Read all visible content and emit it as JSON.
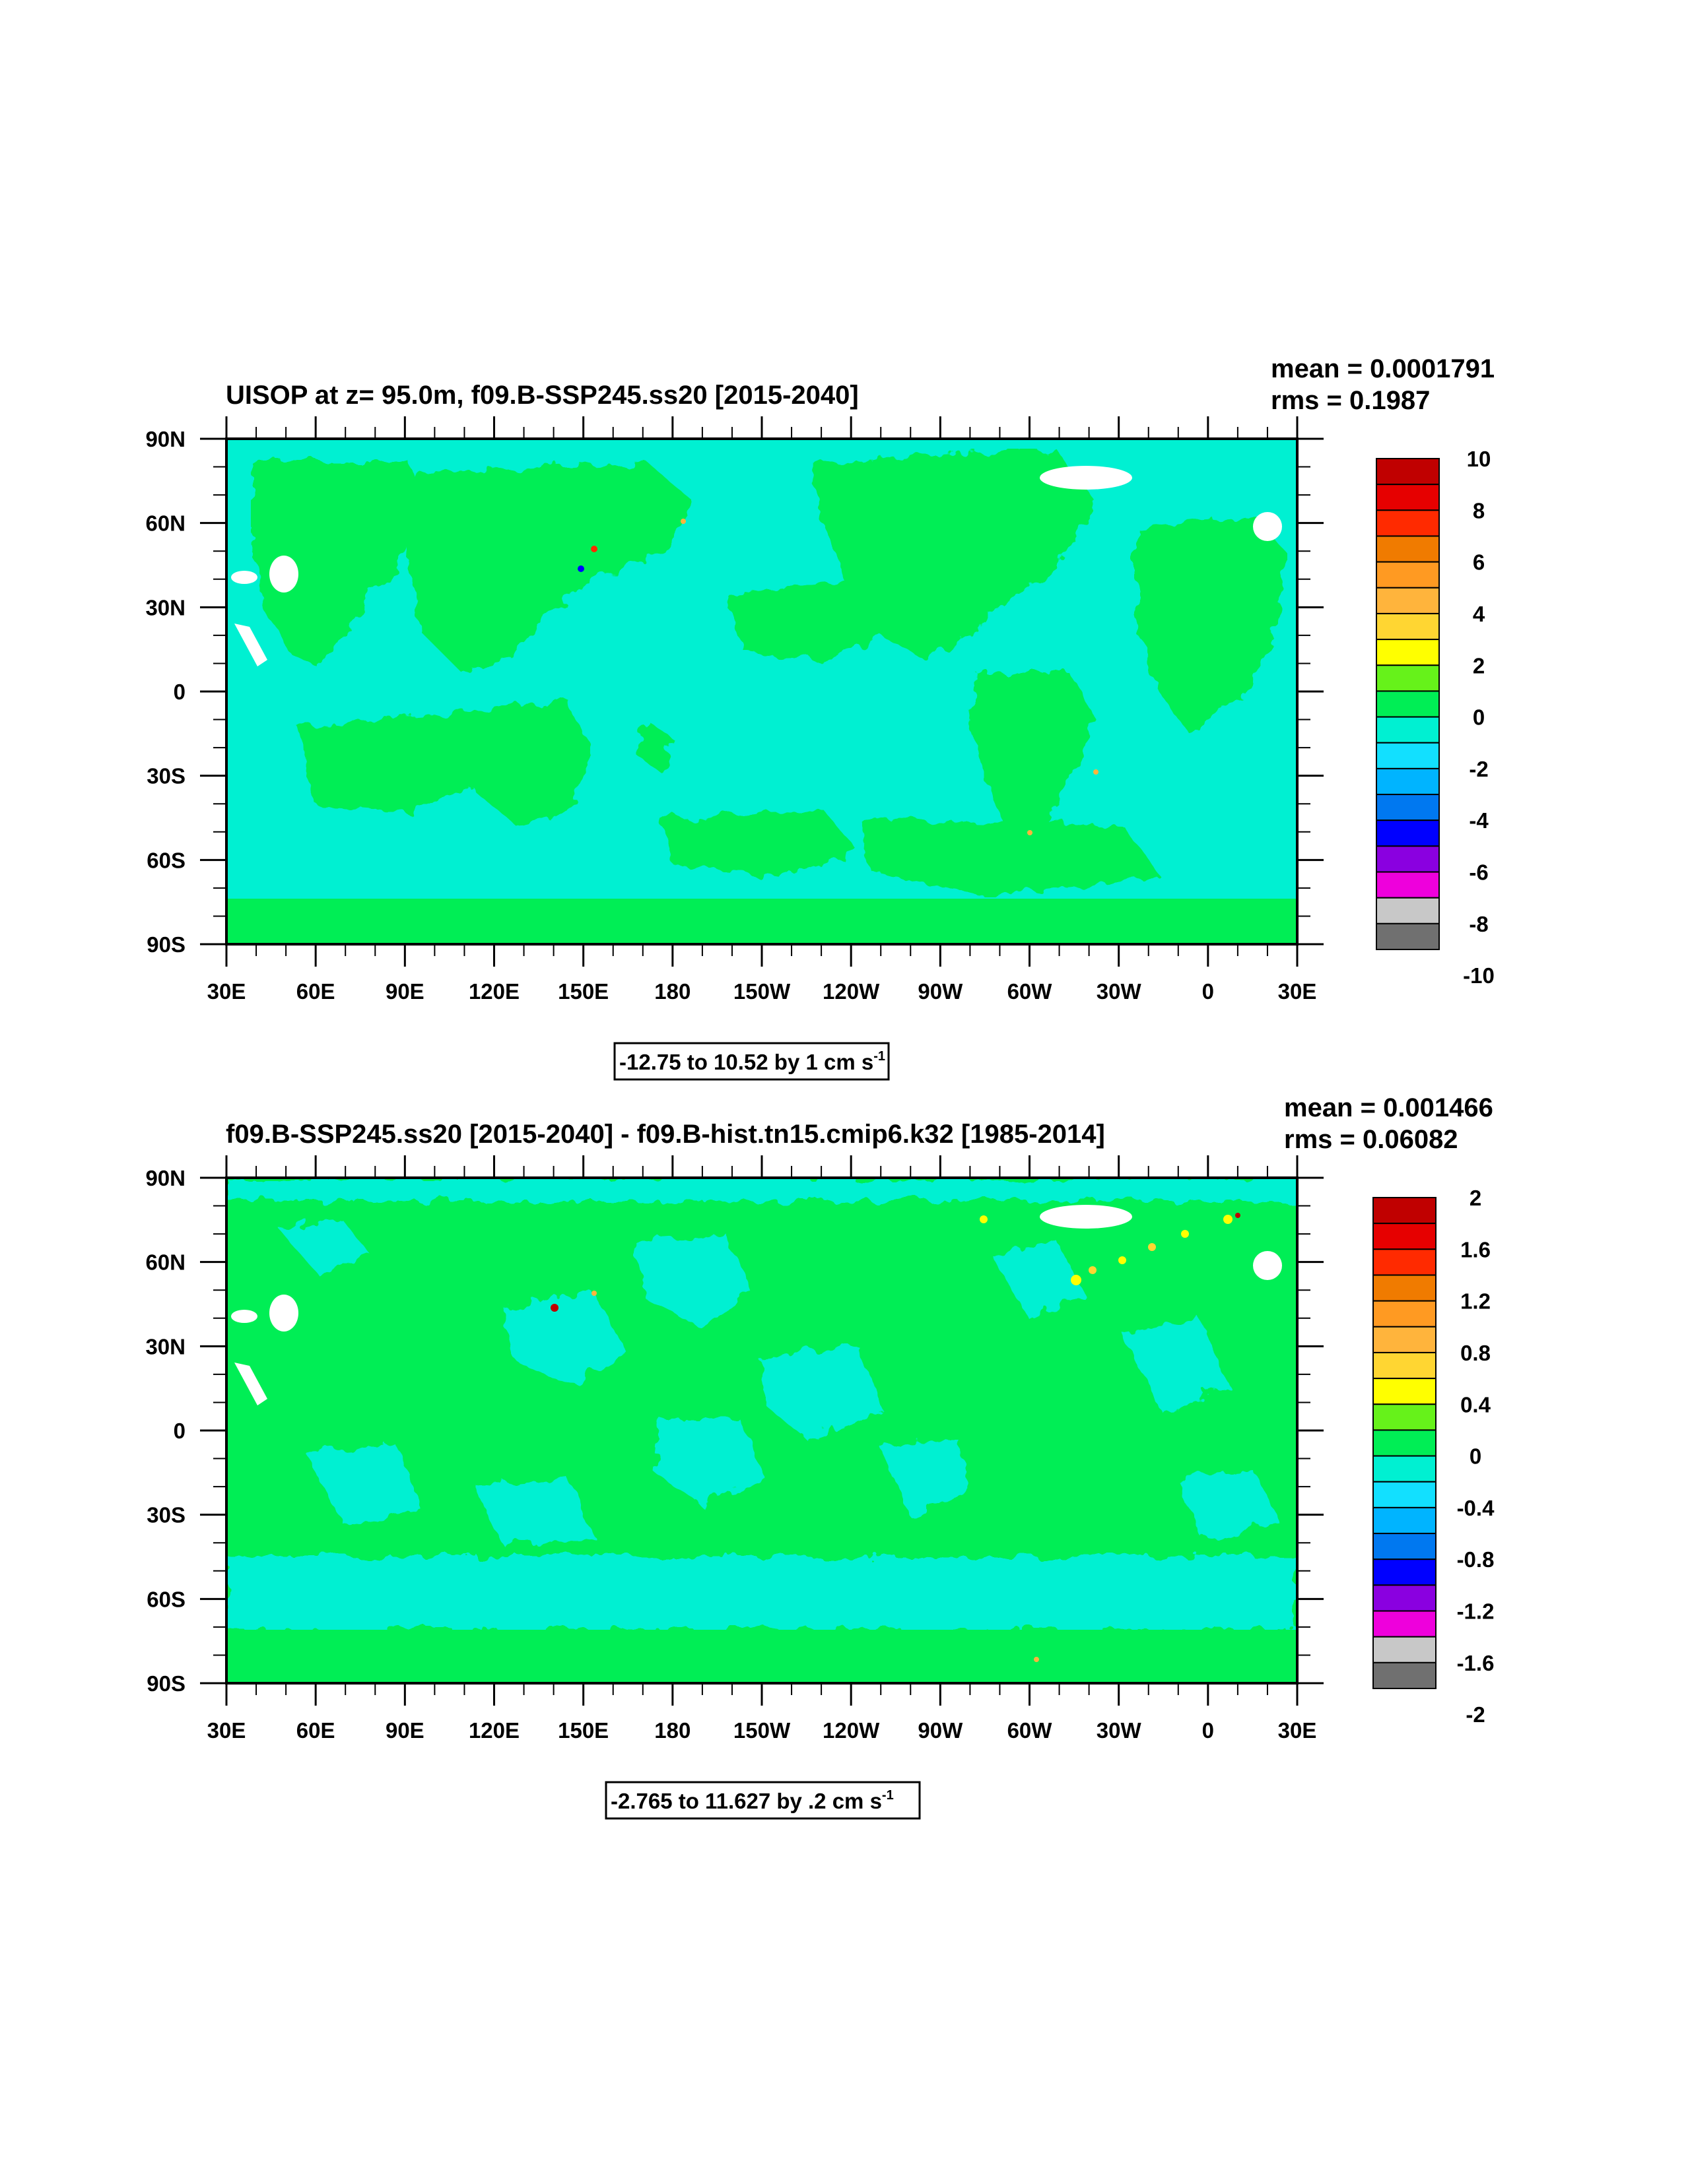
{
  "chart_data": [
    {
      "type": "heatmap",
      "title": "UISOP at z=  95.0m, f09.B-SSP245.ss20 [2015-2040]",
      "stats": {
        "mean": "mean = 0.0001791",
        "rms": "rms = 0.1987"
      },
      "range_note": {
        "text": "-12.75 to 10.52 by 1 cm s",
        "sup": "-1"
      },
      "ylim": [
        -90,
        90
      ],
      "x_ticks": [
        "30E",
        "60E",
        "90E",
        "120E",
        "150E",
        "180",
        "150W",
        "120W",
        "90W",
        "60W",
        "30W",
        "0",
        "30E"
      ],
      "y_ticks": [
        "90N",
        "60N",
        "30N",
        "0",
        "30S",
        "60S",
        "90S"
      ],
      "colorbar": {
        "labels": [
          "10",
          "8",
          "6",
          "4",
          "2",
          "0",
          "-2",
          "-4",
          "-6",
          "-8",
          "-10"
        ],
        "colors": [
          "#c00000",
          "#e60000",
          "#ff2a00",
          "#f07b00",
          "#ff9a22",
          "#ffb43c",
          "#ffd632",
          "#ffff00",
          "#66f21a",
          "#00ee55",
          "#00f0d2",
          "#12e0ff",
          "#00b4ff",
          "#0078f0",
          "#0000ff",
          "#8a00e0",
          "#ee00dc",
          "#c8c8c8",
          "#707070"
        ]
      },
      "colors": {
        "land": "#00ee55",
        "ocean": "#00f0d2",
        "missing": "#ffffff"
      }
    },
    {
      "type": "heatmap",
      "title": "f09.B-SSP245.ss20 [2015-2040] - f09.B-hist.tn15.cmip6.k32 [1985-2014]",
      "stats": {
        "mean": "mean = 0.001466",
        "rms": "rms = 0.06082"
      },
      "range_note": {
        "text": "-2.765 to 11.627 by .2 cm s",
        "sup": "-1"
      },
      "ylim": [
        -90,
        90
      ],
      "x_ticks": [
        "30E",
        "60E",
        "90E",
        "120E",
        "150E",
        "180",
        "150W",
        "120W",
        "90W",
        "60W",
        "30W",
        "0",
        "30E"
      ],
      "y_ticks": [
        "90N",
        "60N",
        "30N",
        "0",
        "30S",
        "60S",
        "90S"
      ],
      "colorbar": {
        "labels": [
          "2",
          "1.6",
          "1.2",
          "0.8",
          "0.4",
          "0",
          "-0.4",
          "-0.8",
          "-1.2",
          "-1.6",
          "-2"
        ],
        "colors": [
          "#c00000",
          "#e60000",
          "#ff2a00",
          "#f07b00",
          "#ff9a22",
          "#ffb43c",
          "#ffd632",
          "#ffff00",
          "#66f21a",
          "#00ee55",
          "#00f0d2",
          "#12e0ff",
          "#00b4ff",
          "#0078f0",
          "#0000ff",
          "#8a00e0",
          "#ee00dc",
          "#c8c8c8",
          "#707070"
        ]
      },
      "colors": {
        "land": "#00ee55",
        "ocean": "#00f0d2",
        "missing": "#ffffff"
      }
    }
  ]
}
